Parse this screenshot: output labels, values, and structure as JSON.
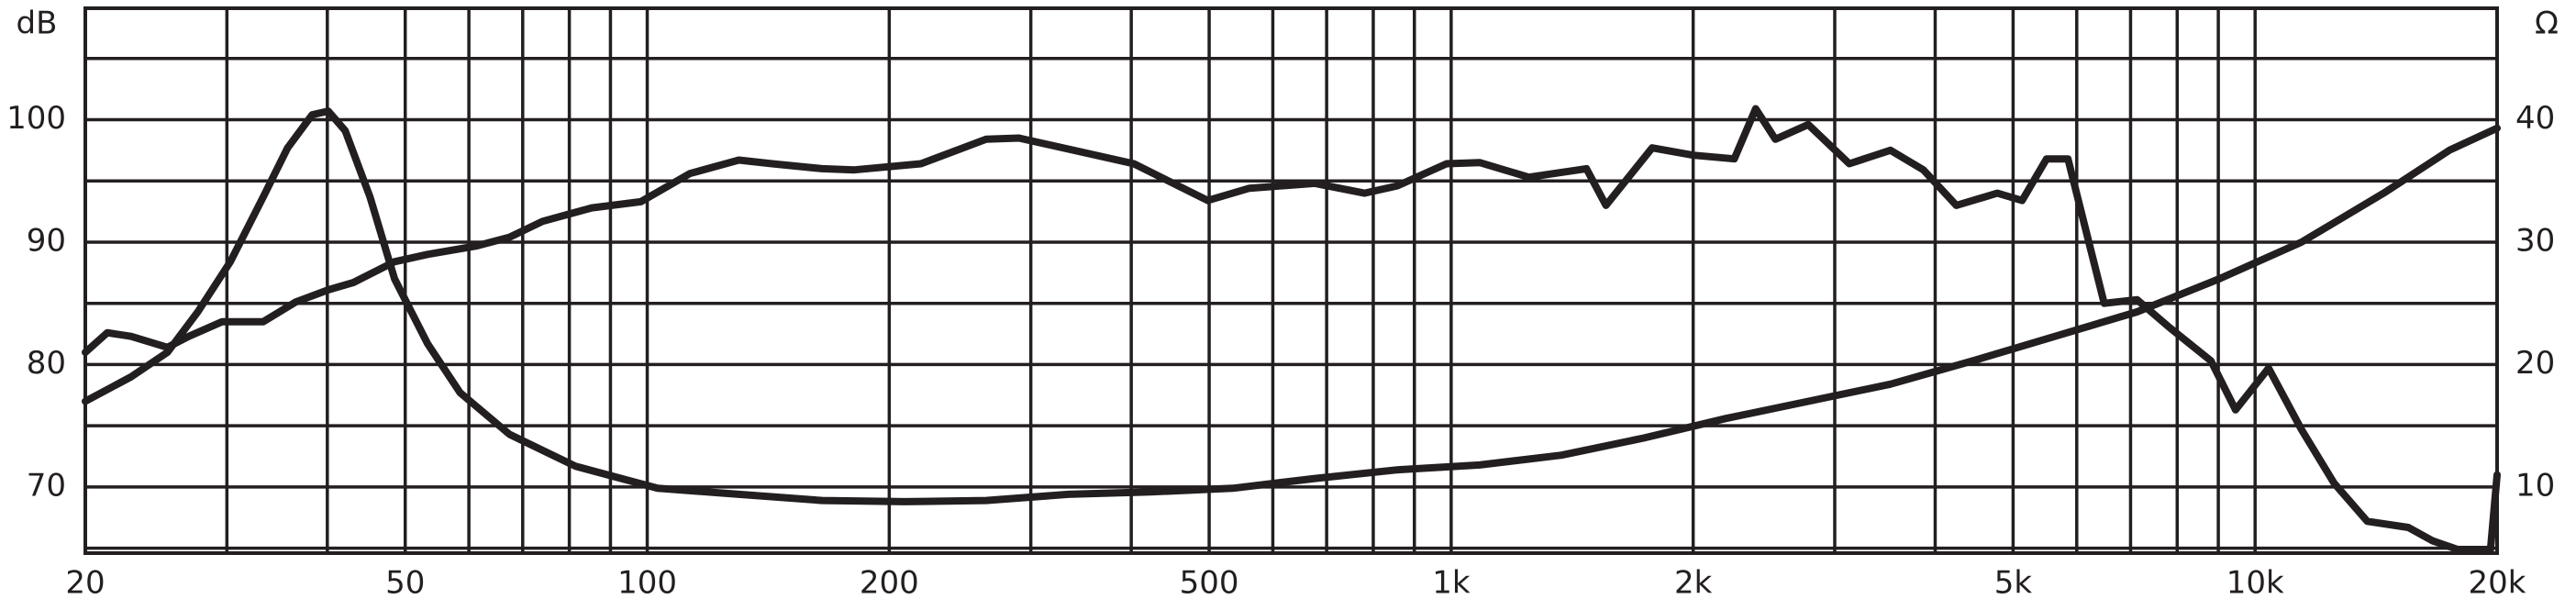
{
  "chart_data": {
    "type": "line",
    "ylabel": "dB",
    "y2label": "Ω",
    "xscale": "log",
    "grid": true,
    "xlim": [
      20,
      20000
    ],
    "xticks": [
      20,
      50,
      100,
      200,
      500,
      {
        "value": 1000,
        "label": "1k"
      },
      {
        "value": 2000,
        "label": "2k"
      },
      {
        "value": 5000,
        "label": "5k"
      },
      {
        "value": 10000,
        "label": "10k"
      },
      {
        "value": 20000,
        "label": "20k"
      }
    ],
    "ylim": [
      64.6,
      109.1
    ],
    "yticks": [
      70,
      80,
      90,
      100
    ],
    "y2lim": [
      4.6,
      49.1
    ],
    "y2ticks": [
      10,
      20,
      30,
      40
    ],
    "series": [
      {
        "color": "#231f20",
        "x": [
          20,
          21.3,
          22.8,
          25.3,
          26.9,
          29.6,
          33.3,
          36.5,
          40.1,
          43.1,
          48.5,
          53.3,
          61.4,
          67.4,
          74.1,
          85.3,
          98.2,
          113,
          130,
          143,
          165,
          181,
          219,
          264,
          290,
          334,
          403,
          498,
          561,
          677,
          780,
          857,
          987,
          1085,
          1249,
          1473,
          1558,
          1778,
          2000,
          2250,
          2392,
          2531,
          2781,
          3128,
          3519,
          3867,
          4250,
          4779,
          5130,
          5504,
          5851,
          6491,
          7131,
          7834,
          8813,
          9457,
          10393,
          11419,
          12543,
          13785,
          15508,
          16640,
          17866,
          19624,
          20000
        ],
        "values": [
          81.0,
          82.6,
          82.3,
          81.4,
          82.3,
          83.5,
          83.5,
          85.1,
          86.1,
          86.7,
          88.4,
          89.0,
          89.7,
          90.4,
          91.7,
          92.8,
          93.3,
          95.6,
          96.7,
          96.4,
          96.0,
          95.9,
          96.4,
          98.4,
          98.5,
          97.6,
          96.4,
          93.4,
          94.4,
          94.8,
          94.0,
          94.6,
          96.4,
          96.5,
          95.3,
          96.0,
          93.0,
          97.7,
          97.1,
          96.8,
          100.9,
          98.4,
          99.6,
          96.4,
          97.5,
          95.9,
          93.0,
          94.0,
          93.4,
          96.8,
          96.8,
          85.0,
          85.3,
          83.0,
          80.3,
          76.3,
          79.7,
          74.7,
          70.3,
          67.2,
          66.7,
          65.6,
          64.9,
          64.9,
          71.0
        ]
      },
      {
        "color": "#231f20",
        "axis": "y2",
        "x": [
          20,
          22.8,
          25.3,
          27.6,
          30.3,
          33.3,
          35.7,
          38.3,
          40.1,
          42.1,
          45.2,
          48.5,
          53.3,
          58.5,
          67.4,
          81.4,
          103,
          130,
          165,
          209,
          264,
          334,
          423,
          535,
          677,
          857,
          1085,
          1372,
          1736,
          2197,
          2781,
          3519,
          4454,
          5636,
          7131,
          9024,
          11419,
          14450,
          17446,
          20000
        ],
        "values": [
          17.0,
          19.0,
          21.0,
          24.3,
          28.4,
          33.7,
          37.7,
          40.4,
          40.7,
          39.1,
          33.7,
          27.0,
          21.7,
          17.7,
          14.3,
          11.7,
          9.9,
          9.4,
          8.9,
          8.8,
          8.9,
          9.4,
          9.6,
          9.9,
          10.7,
          11.4,
          11.8,
          12.6,
          14.0,
          15.6,
          17.0,
          18.4,
          20.3,
          22.3,
          24.3,
          27.0,
          30.0,
          34.0,
          37.5,
          39.3
        ]
      }
    ]
  }
}
